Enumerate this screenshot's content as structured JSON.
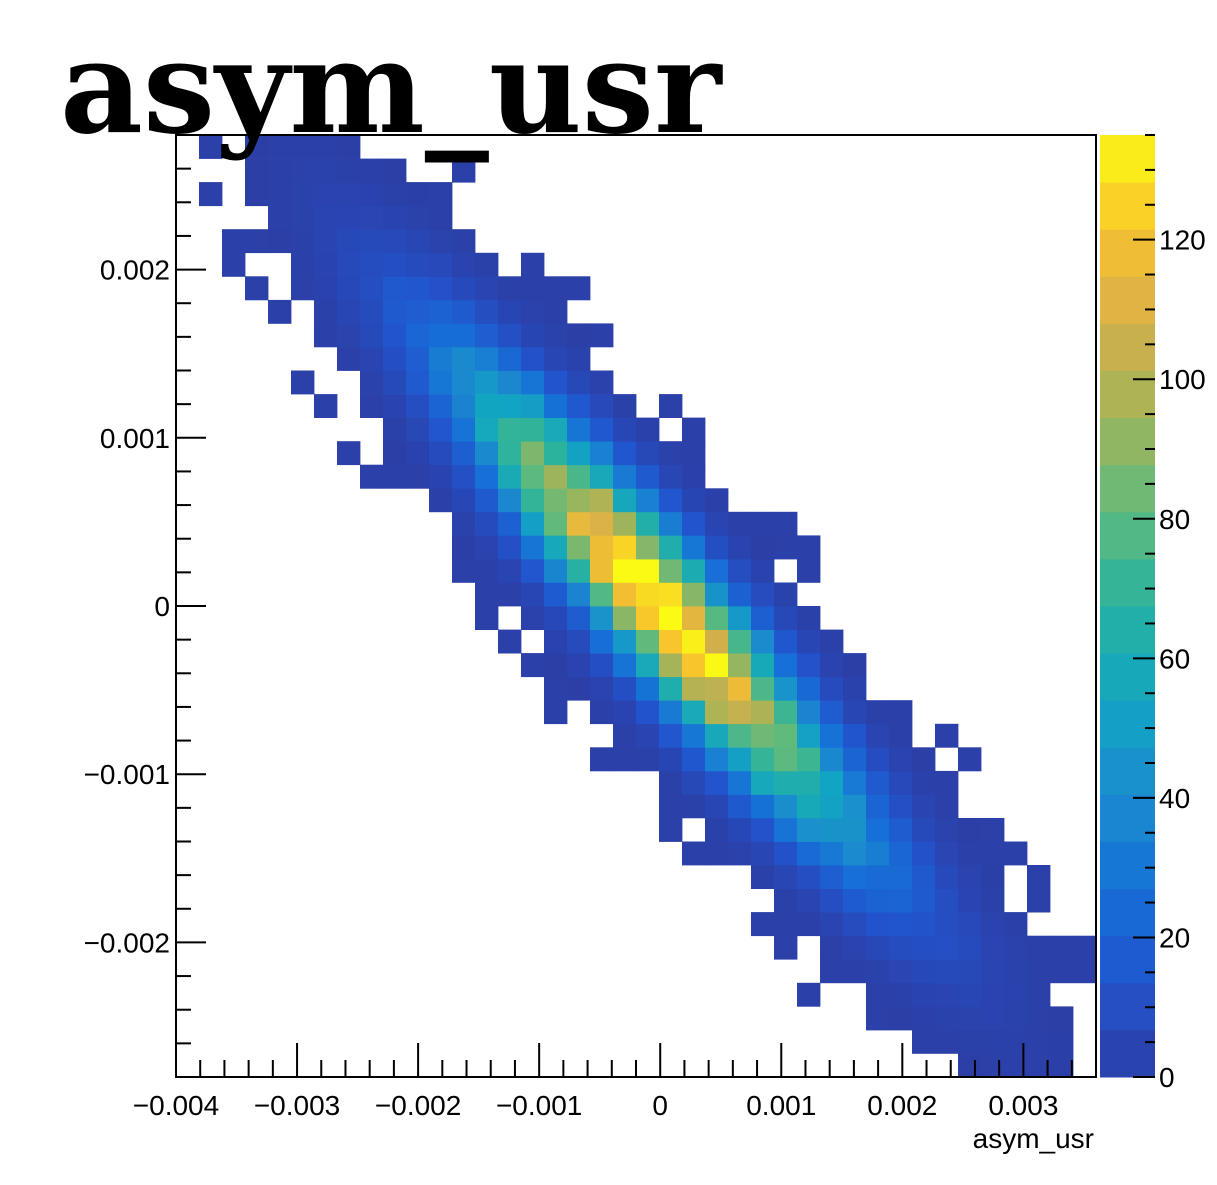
{
  "chart_data": {
    "type": "heatmap",
    "title": "asym_usr",
    "xlabel": "asym_usr",
    "ylabel": "",
    "xlim": [
      -0.004,
      0.0036
    ],
    "ylim": [
      -0.0028,
      0.0028
    ],
    "x_ticks": [
      "−0.004",
      "−0.003",
      "−0.002",
      "−0.001",
      "0",
      "0.001",
      "0.002",
      "0.003"
    ],
    "x_tick_values": [
      -0.004,
      -0.003,
      -0.002,
      -0.001,
      0,
      0.001,
      0.002,
      0.003
    ],
    "y_ticks": [
      "0.002",
      "0.001",
      "0",
      "−0.001",
      "−0.002"
    ],
    "y_tick_values": [
      0.002,
      0.001,
      0,
      -0.001,
      -0.002
    ],
    "colorbar": {
      "min": 0,
      "max": 135,
      "ticks": [
        "0",
        "20",
        "40",
        "60",
        "80",
        "100",
        "120"
      ],
      "tick_values": [
        0,
        20,
        40,
        60,
        80,
        100,
        120
      ]
    },
    "bins": {
      "x_min": -0.004,
      "x_width": 0.00019,
      "y_min": -0.0028,
      "y_width": 0.00014,
      "count_x": 40,
      "count_y": 40
    },
    "peak": {
      "x": 0.0,
      "y": 0.0,
      "value": 135
    },
    "correlation": "strong negative"
  }
}
